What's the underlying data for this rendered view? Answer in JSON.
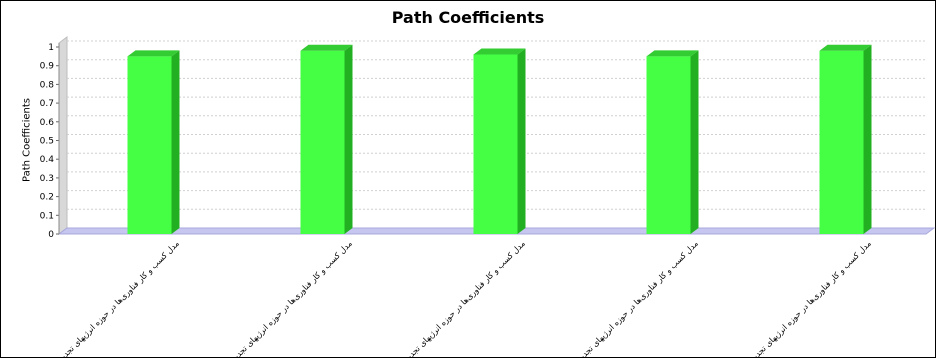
{
  "chart_data": {
    "type": "bar",
    "title": "Path Coefficients",
    "xlabel": "",
    "ylabel": "Path Coefficients",
    "ylim": [
      0,
      1
    ],
    "yticks": [
      "0",
      "0.1",
      "0.2",
      "0.3",
      "0.4",
      "0.5",
      "0.6",
      "0.7",
      "0.8",
      "0.9",
      "1"
    ],
    "grid": true,
    "legend": "none",
    "categories": [
      "...مدل کسب و کار فناوری‌ها در حوزه انرژیهای تجدید",
      "...مدل کسب و کار فناوری‌ها در حوزه انرژیهای تجدید",
      "...مدل کسب و کار فناوری‌ها در حوزه انرژیهای تجدید",
      "...مدل کسب و کار فناوری‌ها در حوزه انرژیهای تجدید",
      "...مدل کسب و کار فناوری‌ها در حوزه انرژیهای تجدید"
    ],
    "values": [
      0.95,
      0.98,
      0.96,
      0.95,
      0.98
    ],
    "colors": {
      "bar_front": "#44ff44",
      "bar_side": "#22b022",
      "bar_top": "#33cc33",
      "floor": "#c6c6f0",
      "grid": "#d0d0d0"
    }
  }
}
